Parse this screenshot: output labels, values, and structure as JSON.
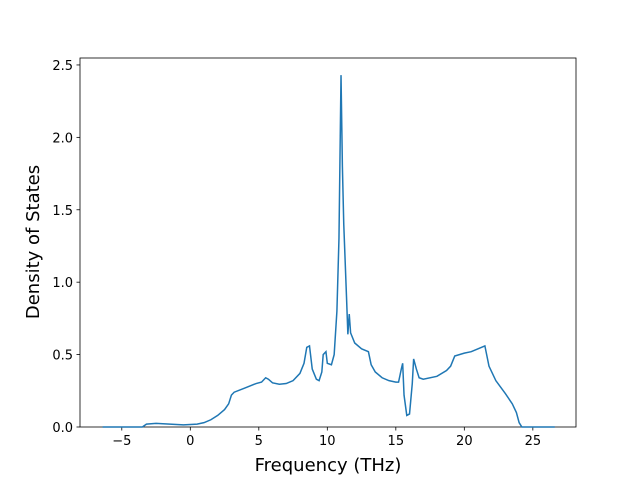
{
  "chart_data": {
    "type": "line",
    "x_label": "Frequency (THz)",
    "y_label": "Density of States",
    "x": [
      -6.4,
      -3.5,
      -3.2,
      -2.5,
      -1.5,
      -0.5,
      0.5,
      1,
      1.5,
      2,
      2.5,
      2.8,
      3,
      3.2,
      4,
      4.8,
      5.2,
      5.5,
      5.7,
      6,
      6.5,
      7,
      7.5,
      8,
      8.3,
      8.5,
      8.7,
      8.9,
      9.2,
      9.4,
      9.6,
      9.7,
      9.9,
      10,
      10.3,
      10.5,
      10.7,
      10.85,
      11,
      11.1,
      11.2,
      11.4,
      11.5,
      11.6,
      11.7,
      12,
      12.5,
      13,
      13.2,
      13.5,
      14,
      14.5,
      15,
      15.2,
      15.4,
      15.5,
      15.6,
      15.8,
      16,
      16.2,
      16.3,
      16.5,
      16.7,
      17,
      18,
      18.7,
      19,
      19.3,
      20,
      20.5,
      21,
      21.5,
      21.8,
      22.3,
      23,
      23.5,
      23.8,
      24,
      24.2,
      26.6
    ],
    "series": [
      {
        "color": "#1f77b4",
        "values": [
          0,
          0,
          0.02,
          0.025,
          0.02,
          0.015,
          0.02,
          0.03,
          0.05,
          0.08,
          0.12,
          0.16,
          0.22,
          0.24,
          0.27,
          0.3,
          0.31,
          0.34,
          0.33,
          0.305,
          0.295,
          0.3,
          0.32,
          0.37,
          0.44,
          0.55,
          0.56,
          0.4,
          0.33,
          0.32,
          0.38,
          0.5,
          0.52,
          0.44,
          0.43,
          0.5,
          0.8,
          1.3,
          2.43,
          1.8,
          1.4,
          0.9,
          0.64,
          0.78,
          0.65,
          0.58,
          0.54,
          0.52,
          0.43,
          0.38,
          0.34,
          0.32,
          0.31,
          0.31,
          0.4,
          0.44,
          0.22,
          0.08,
          0.09,
          0.3,
          0.47,
          0.4,
          0.34,
          0.33,
          0.35,
          0.39,
          0.42,
          0.49,
          0.51,
          0.52,
          0.54,
          0.56,
          0.42,
          0.32,
          0.23,
          0.16,
          0.1,
          0.03,
          0,
          0
        ]
      }
    ],
    "xlim": [
      -8.05,
      28.15
    ],
    "ylim": [
      0,
      2.548
    ],
    "xticks": [
      {
        "value": -5,
        "label": "−5"
      },
      0,
      5,
      10,
      15,
      20,
      25
    ],
    "yticks": [
      {
        "value": 0,
        "label": "0.0"
      },
      0.5,
      {
        "value": 1,
        "label": "1.0"
      },
      1.5,
      {
        "value": 2,
        "label": "2.0"
      },
      2.5
    ]
  }
}
